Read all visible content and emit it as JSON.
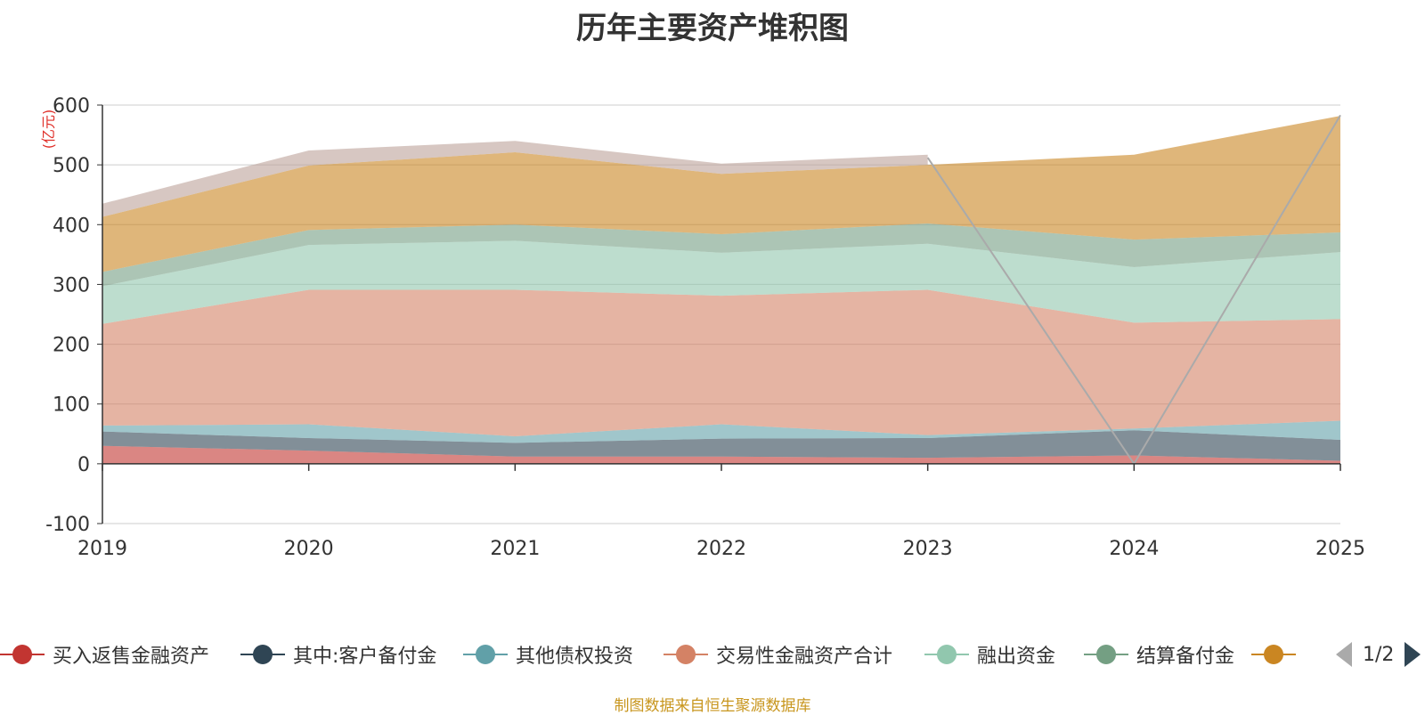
{
  "title": "历年主要资产堆积图",
  "source_note": "制图数据来自恒生聚源数据库",
  "pager": {
    "text": "1/2"
  },
  "chart_data": {
    "type": "area",
    "stacked": true,
    "title": "历年主要资产堆积图",
    "unit_label": "(亿元)",
    "categories": [
      "2019",
      "2020",
      "2021",
      "2022",
      "2023",
      "2024",
      "2025"
    ],
    "ylim": [
      -100,
      600
    ],
    "yticks": [
      -100,
      0,
      100,
      200,
      300,
      400,
      500,
      600
    ],
    "grid": true,
    "series": [
      {
        "name": "买入返售金融资产",
        "color": "#c23531",
        "values": [
          30,
          22,
          12,
          12,
          10,
          14,
          5
        ]
      },
      {
        "name": "其中:客户备付金",
        "color": "#2f4554",
        "values": [
          24,
          21,
          23,
          30,
          33,
          42,
          35
        ]
      },
      {
        "name": "其他债权投资",
        "color": "#61a0a8",
        "values": [
          10,
          23,
          11,
          24,
          5,
          3,
          32
        ]
      },
      {
        "name": "交易性金融资产合计",
        "color": "#d48265",
        "values": [
          170,
          225,
          245,
          215,
          243,
          177,
          170
        ]
      },
      {
        "name": "融出资金",
        "color": "#91c7ae",
        "values": [
          63,
          75,
          82,
          72,
          77,
          93,
          112
        ]
      },
      {
        "name": "结算备付金",
        "color": "#749f83",
        "values": [
          24,
          25,
          27,
          31,
          34,
          46,
          33
        ]
      },
      {
        "name": "",
        "color": "#ca8622",
        "values": [
          92,
          108,
          121,
          101,
          98,
          142,
          195
        ]
      },
      {
        "name": "",
        "color": "#bda29a",
        "values": [
          22,
          25,
          19,
          17,
          17,
          null,
          null
        ]
      }
    ],
    "line_series": [
      {
        "name": "",
        "color": "#aaaaaa",
        "values": [
          null,
          null,
          null,
          null,
          512,
          0,
          583
        ]
      }
    ]
  },
  "legend": {
    "items": [
      {
        "label": "买入返售金融资产",
        "color": "#c23531"
      },
      {
        "label": "其中:客户备付金",
        "color": "#2f4554"
      },
      {
        "label": "其他债权投资",
        "color": "#61a0a8"
      },
      {
        "label": "交易性金融资产合计",
        "color": "#d48265"
      },
      {
        "label": "融出资金",
        "color": "#91c7ae"
      },
      {
        "label": "结算备付金",
        "color": "#749f83"
      },
      {
        "label": "",
        "color": "#ca8622"
      }
    ]
  }
}
